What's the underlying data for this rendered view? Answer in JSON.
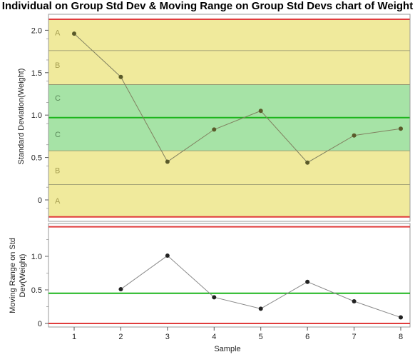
{
  "chart_data": [
    {
      "type": "line",
      "title": "Individual on Group Std Dev & Moving Range on Group Std Devs chart of Weight",
      "panel": "individual",
      "xlabel": "Sample",
      "ylabel": "Standard Deviation(Weight)",
      "x": [
        1,
        2,
        3,
        4,
        5,
        6,
        7,
        8
      ],
      "values": [
        1.96,
        1.45,
        0.45,
        0.83,
        1.05,
        0.44,
        0.76,
        0.84
      ],
      "ylim": [
        -0.22,
        2.16
      ],
      "yticks": [
        0,
        0.5,
        1.0,
        1.5,
        2.0
      ],
      "ytick_labels": [
        "0",
        "0.5",
        "1.0",
        "1.5",
        "2.0"
      ],
      "center_line": 0.97,
      "ucl": 2.13,
      "lcl": -0.2,
      "zone_boundaries": [
        1.76,
        1.36,
        0.58,
        0.18
      ],
      "zone_labels": [
        "A",
        "B",
        "C",
        "C",
        "B",
        "A"
      ],
      "colors": {
        "zone_ab": "#f0ea9c",
        "zone_c": "#a6e3a6",
        "center": "#1cb51c",
        "limits": "#e03c3c",
        "line": "#808060",
        "marker": "#5a5a2a",
        "zone_text": "#a8a052",
        "zone_text_c": "#5a8a5a"
      }
    },
    {
      "type": "line",
      "panel": "moving-range",
      "xlabel": "Sample",
      "ylabel": "Moving Range on Std Dev(Weight)",
      "x": [
        2,
        3,
        4,
        5,
        6,
        7,
        8
      ],
      "values": [
        0.51,
        1.01,
        0.39,
        0.22,
        0.62,
        0.33,
        0.09
      ],
      "ylim": [
        -0.03,
        1.45
      ],
      "yticks": [
        0,
        0.5,
        1.0
      ],
      "ytick_labels": [
        "0",
        "0.5",
        "1.0"
      ],
      "center_line": 0.45,
      "ucl": 1.44,
      "lcl": 0,
      "xticks": [
        "1",
        "2",
        "3",
        "4",
        "5",
        "6",
        "7",
        "8"
      ],
      "colors": {
        "center": "#1cb51c",
        "limits": "#e03c3c",
        "line": "#888888",
        "marker": "#222222"
      }
    }
  ]
}
